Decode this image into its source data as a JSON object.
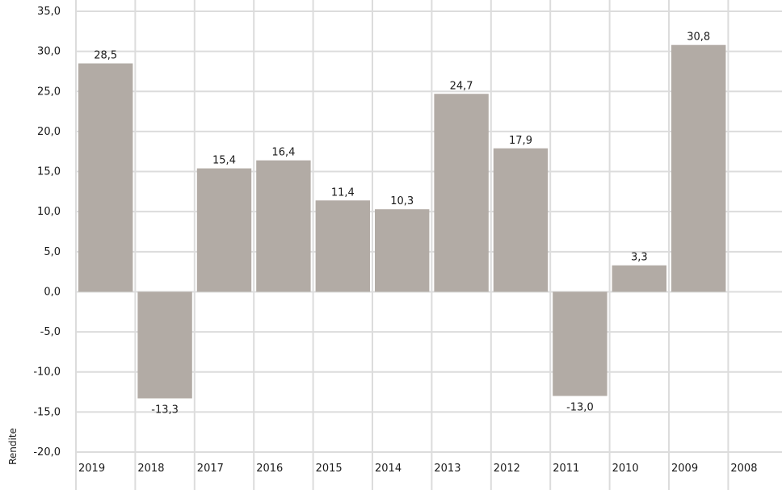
{
  "chart_data": {
    "type": "bar",
    "categories": [
      "2019",
      "2018",
      "2017",
      "2016",
      "2015",
      "2014",
      "2013",
      "2012",
      "2011",
      "2010",
      "2009",
      "2008"
    ],
    "values": [
      28.5,
      -13.3,
      15.4,
      16.4,
      11.4,
      10.3,
      24.7,
      17.9,
      -13.0,
      3.3,
      30.8,
      null
    ],
    "data_labels": [
      "28,5",
      "-13,3",
      "15,4",
      "16,4",
      "11,4",
      "10,3",
      "24,7",
      "17,9",
      "-13,0",
      "3,3",
      "30,8",
      ""
    ],
    "ylabel": "Rendite",
    "ylim": [
      -20,
      35
    ],
    "yticks": [
      35,
      30,
      25,
      20,
      15,
      10,
      5,
      0,
      -5,
      -10,
      -15,
      -20
    ],
    "ytick_labels": [
      "35,0",
      "30,0",
      "25,0",
      "20,0",
      "15,0",
      "10,0",
      "5,0",
      "0,0",
      "-5,0",
      "-10,0",
      "-15,0",
      "-20,0"
    ],
    "bar_color": "#b2aba5",
    "grid_color": "#dcdcdc",
    "grid": true,
    "legend": "none"
  }
}
